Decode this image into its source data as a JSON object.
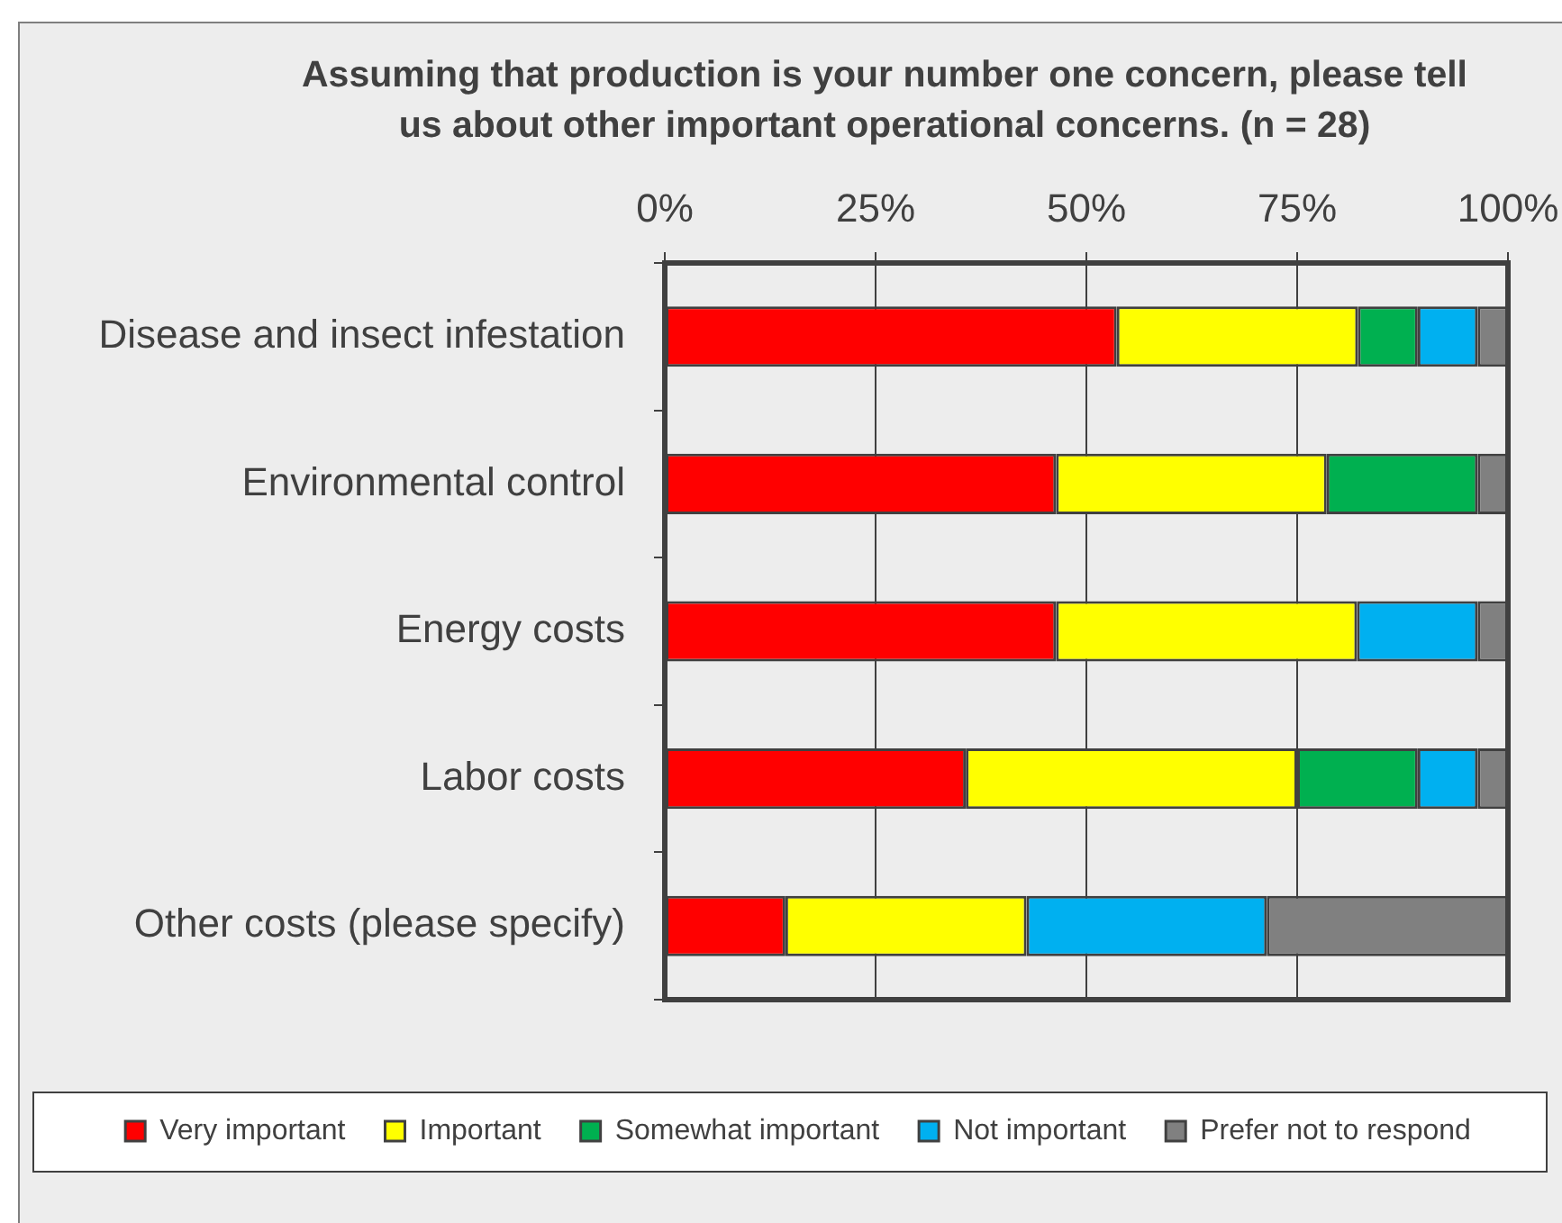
{
  "chart_data": {
    "type": "bar",
    "orientation": "horizontal",
    "stacked": true,
    "title": "Assuming that production is your number one concern, please tell us about other important operational concerns. (n = 28)",
    "categories": [
      "Disease and insect infestation",
      "Environmental control",
      "Energy costs",
      "Labor costs",
      "Other costs (please specify)"
    ],
    "series": [
      {
        "name": "Very important",
        "color": "#ff0000",
        "values": [
          53.6,
          46.4,
          46.4,
          35.7,
          14.3
        ]
      },
      {
        "name": "Important",
        "color": "#ffff00",
        "values": [
          28.6,
          32.1,
          35.7,
          39.3,
          28.6
        ]
      },
      {
        "name": "Somewhat important",
        "color": "#00b050",
        "values": [
          7.1,
          17.9,
          0,
          14.3,
          0
        ]
      },
      {
        "name": "Not important",
        "color": "#00b0f0",
        "values": [
          7.1,
          0,
          14.3,
          7.1,
          28.5
        ]
      },
      {
        "name": "Prefer not to respond",
        "color": "#808080",
        "values": [
          3.6,
          3.6,
          3.6,
          3.6,
          28.6
        ]
      }
    ],
    "xlim": [
      0,
      100
    ],
    "xticks": [
      {
        "value": 0,
        "label": "0%"
      },
      {
        "value": 25,
        "label": "25%"
      },
      {
        "value": 50,
        "label": "50%"
      },
      {
        "value": 75,
        "label": "75%"
      },
      {
        "value": 100,
        "label": "100%"
      }
    ],
    "grid": "x",
    "legend": "bottom"
  }
}
